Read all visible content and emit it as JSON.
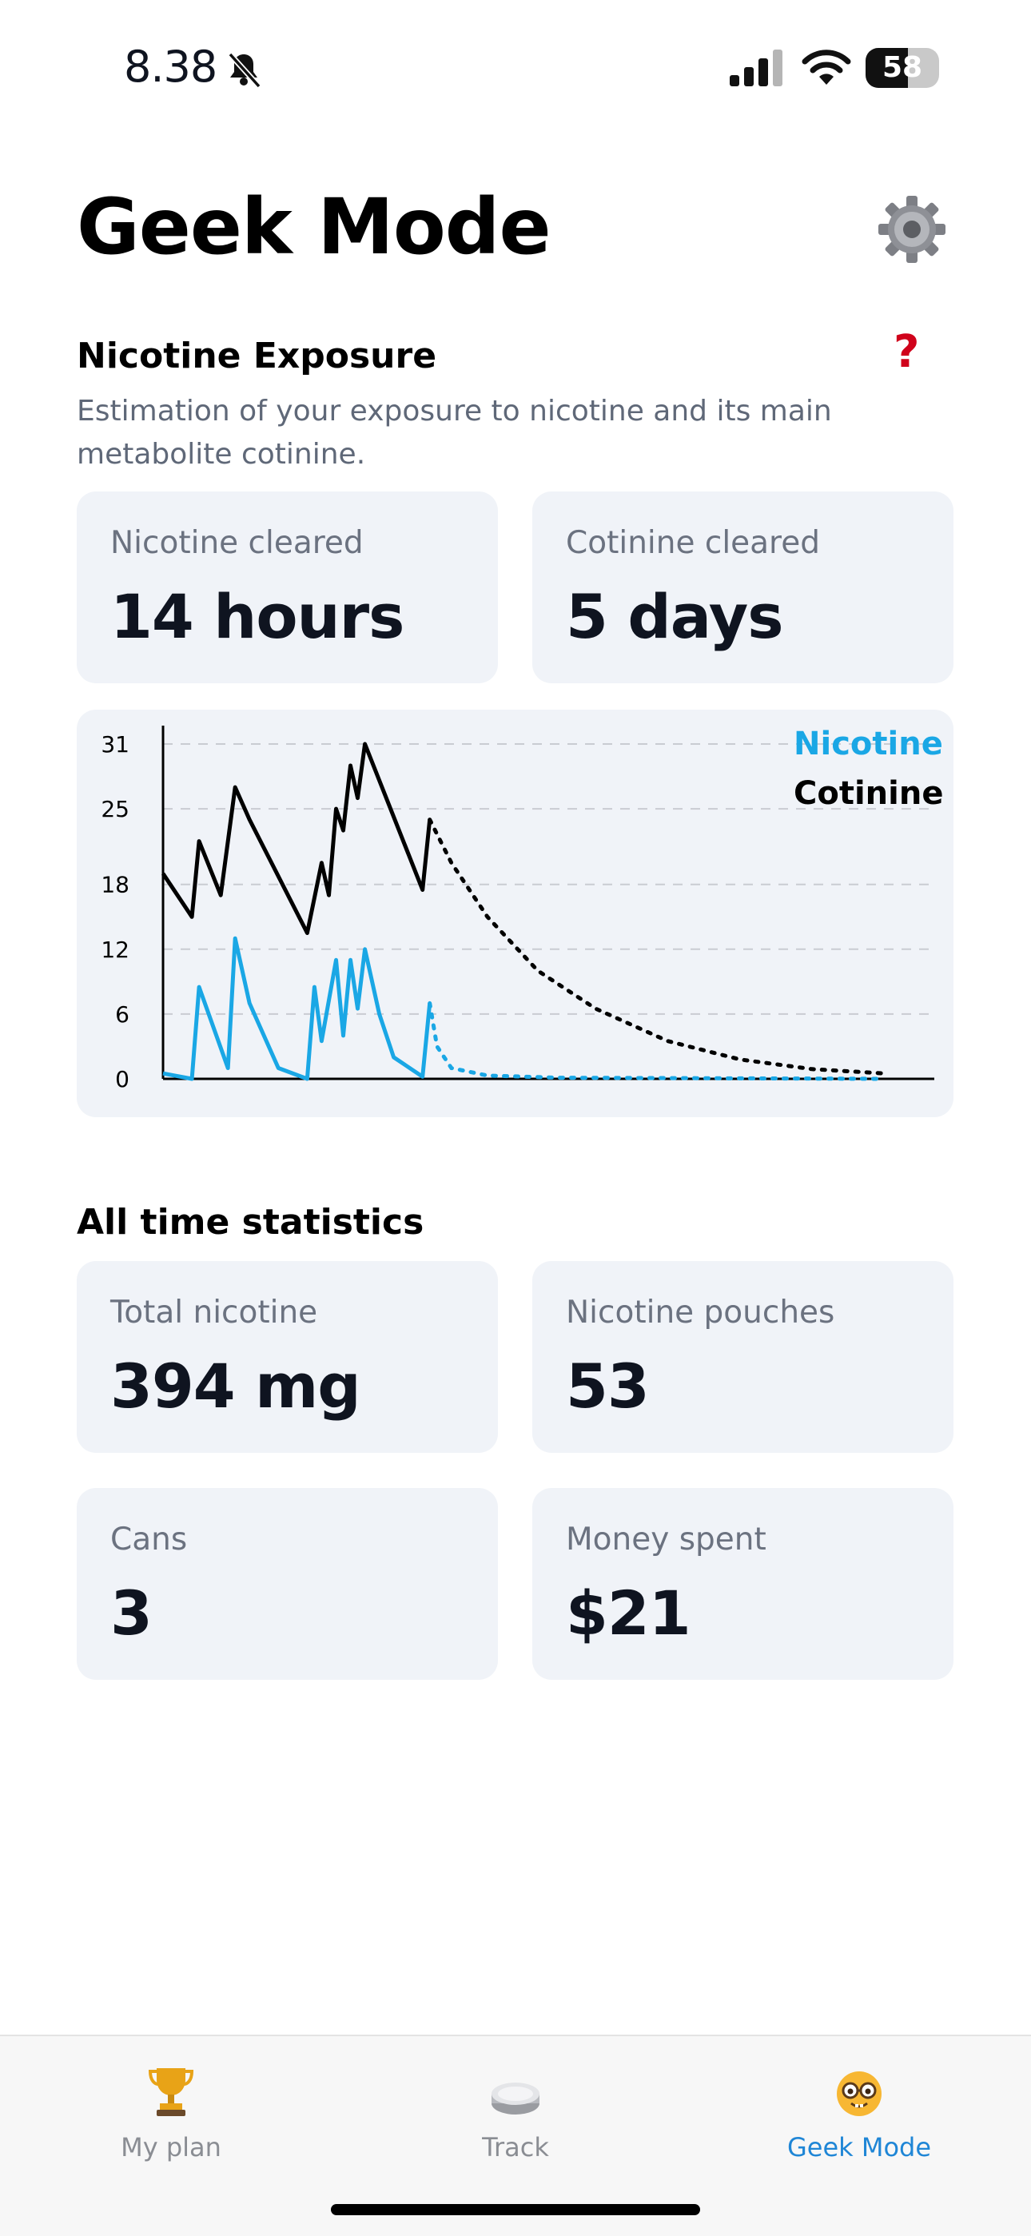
{
  "status_bar": {
    "time": "8.38",
    "battery": "58"
  },
  "header": {
    "title": "Geek Mode"
  },
  "exposure": {
    "title": "Nicotine Exposure",
    "help": "?",
    "description": "Estimation of your exposure to nicotine and its main metabolite cotinine.",
    "cards": [
      {
        "label": "Nicotine cleared",
        "value": "14 hours"
      },
      {
        "label": "Cotinine cleared",
        "value": "5 days"
      }
    ]
  },
  "chart_data": {
    "type": "line",
    "yticks": [
      "31",
      "25",
      "18",
      "12",
      "6",
      "0"
    ],
    "ylim": [
      0,
      31
    ],
    "xlim": [
      0,
      100
    ],
    "grid": true,
    "legend_position": "top-right",
    "colors": {
      "nicotine": "#1aa7e5",
      "cotinine": "#000000"
    },
    "series": [
      {
        "name": "Nicotine",
        "points": [
          [
            0,
            0.5
          ],
          [
            4,
            0
          ],
          [
            5,
            8.5
          ],
          [
            9,
            1
          ],
          [
            10,
            13
          ],
          [
            12,
            7
          ],
          [
            16,
            1
          ],
          [
            20,
            0
          ],
          [
            21,
            8.5
          ],
          [
            22,
            3.5
          ],
          [
            24,
            11
          ],
          [
            25,
            4
          ],
          [
            26,
            11
          ],
          [
            27,
            6.5
          ],
          [
            28,
            12
          ],
          [
            30,
            6
          ],
          [
            32,
            2
          ],
          [
            36,
            0.2
          ],
          [
            37,
            7
          ]
        ],
        "projection": [
          [
            37,
            7
          ],
          [
            38,
            3
          ],
          [
            40,
            1
          ],
          [
            45,
            0.3
          ],
          [
            55,
            0.1
          ],
          [
            100,
            0
          ]
        ]
      },
      {
        "name": "Cotinine",
        "points": [
          [
            0,
            19
          ],
          [
            4,
            15
          ],
          [
            5,
            22
          ],
          [
            8,
            17
          ],
          [
            10,
            27
          ],
          [
            12,
            24
          ],
          [
            20,
            13.5
          ],
          [
            22,
            20
          ],
          [
            23,
            17
          ],
          [
            24,
            25
          ],
          [
            25,
            23
          ],
          [
            26,
            29
          ],
          [
            27,
            26
          ],
          [
            28,
            31
          ],
          [
            36,
            17.5
          ],
          [
            37,
            24
          ]
        ],
        "projection": [
          [
            37,
            24
          ],
          [
            40,
            20
          ],
          [
            45,
            15
          ],
          [
            52,
            10
          ],
          [
            60,
            6.5
          ],
          [
            70,
            3.5
          ],
          [
            80,
            1.8
          ],
          [
            90,
            0.9
          ],
          [
            100,
            0.5
          ]
        ]
      }
    ]
  },
  "stats": {
    "title": "All time statistics",
    "cards": [
      {
        "label": "Total nicotine",
        "value": "394 mg"
      },
      {
        "label": "Nicotine pouches",
        "value": "53"
      },
      {
        "label": "Cans",
        "value": "3"
      },
      {
        "label": "Money spent",
        "value": "$21"
      }
    ]
  },
  "tabs": [
    {
      "label": "My plan",
      "icon": "trophy-icon"
    },
    {
      "label": "Track",
      "icon": "pouch-can-icon"
    },
    {
      "label": "Geek Mode",
      "icon": "nerd-face-icon",
      "active": true
    }
  ],
  "accent": "#1f86d6"
}
